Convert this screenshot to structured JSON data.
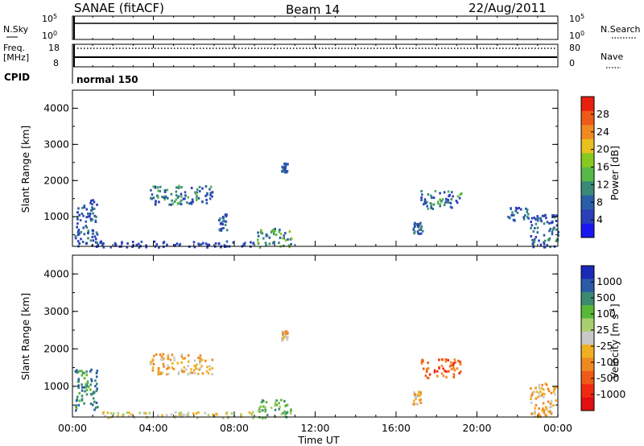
{
  "header": {
    "station": "SANAE (fitACF)",
    "beam": "Beam 14",
    "date": "22/Aug/2011"
  },
  "labels": {
    "nsky": "N.Sky",
    "nsky_top": "10^5",
    "nsky_bottom": "10^0",
    "nsearch": "N.Search",
    "nsearch_top": "10^5",
    "nsearch_bottom": "10^0",
    "freq_line1": "Freq.",
    "freq_line2": "[MHz]",
    "freq_top": "18",
    "freq_bottom": "8",
    "nave_top": "80",
    "nave_bottom": "0",
    "nave": "Nave",
    "cpid": "CPID",
    "cpid_value": "normal 150"
  },
  "colors": {
    "frame": "#000000",
    "power_scale": [
      "#1a17f0",
      "#2a3fb8",
      "#2a5ea8",
      "#3a8a78",
      "#58b848",
      "#88c820",
      "#e8c020",
      "#f08a20",
      "#f05a18",
      "#e82010"
    ],
    "velocity_scale": [
      "#1a2ab8",
      "#2a5aa8",
      "#3a8a70",
      "#58b838",
      "#a8d070",
      "#c8c8c8",
      "#f0b020",
      "#f08820",
      "#f05a18",
      "#f02a10",
      "#e01010"
    ]
  },
  "chart_data": [
    {
      "type": "heatmap",
      "name": "power",
      "xlabel": "",
      "ylabel": "Slant Range [km]",
      "x_ticks": [
        "00:00",
        "04:00",
        "08:00",
        "12:00",
        "16:00",
        "20:00",
        "00:00"
      ],
      "y_ticks": [
        "1000",
        "2000",
        "3000",
        "4000"
      ],
      "xlim_hours": [
        0,
        24
      ],
      "ylim_km": [
        180,
        4500
      ],
      "colorbar": {
        "label": "Power [dB]",
        "ticks": [
          "4",
          "8",
          "12",
          "16",
          "20",
          "24",
          "28"
        ],
        "range": [
          0,
          30
        ]
      },
      "regions": [
        {
          "t0": 3.8,
          "t1": 6.9,
          "r0": 1350,
          "r1": 1900,
          "level": 9
        },
        {
          "t0": 17.2,
          "t1": 19.2,
          "r0": 1250,
          "r1": 1750,
          "level": 10
        },
        {
          "t0": 0.1,
          "t1": 1.2,
          "r0": 200,
          "r1": 1500,
          "level": 6
        },
        {
          "t0": 9.1,
          "t1": 10.8,
          "r0": 180,
          "r1": 700,
          "level": 14
        },
        {
          "t0": 22.6,
          "t1": 24.0,
          "r0": 180,
          "r1": 1100,
          "level": 6
        },
        {
          "t0": 1.2,
          "t1": 9.0,
          "r0": 180,
          "r1": 350,
          "level": 5
        },
        {
          "t0": 10.3,
          "t1": 10.6,
          "r0": 2250,
          "r1": 2500,
          "level": 6
        },
        {
          "t0": 7.2,
          "t1": 7.6,
          "r0": 650,
          "r1": 1100,
          "level": 6
        },
        {
          "t0": 16.8,
          "t1": 17.3,
          "r0": 550,
          "r1": 900,
          "level": 6
        },
        {
          "t0": 21.5,
          "t1": 22.5,
          "r0": 900,
          "r1": 1300,
          "level": 6
        }
      ]
    },
    {
      "type": "heatmap",
      "name": "velocity",
      "xlabel": "Time UT",
      "ylabel": "Slant Range [km]",
      "x_ticks": [
        "00:00",
        "04:00",
        "08:00",
        "12:00",
        "16:00",
        "20:00",
        "00:00"
      ],
      "y_ticks": [
        "1000",
        "2000",
        "3000",
        "4000"
      ],
      "xlim_hours": [
        0,
        24
      ],
      "ylim_km": [
        180,
        4500
      ],
      "colorbar": {
        "label": "Velocity [m s^-1]",
        "ticks": [
          "1000",
          "500",
          "100",
          "25",
          "-25",
          "-100",
          "-500",
          "-1000"
        ]
      },
      "regions": [
        {
          "t0": 3.8,
          "t1": 6.9,
          "r0": 1350,
          "r1": 1900,
          "class": "-100"
        },
        {
          "t0": 17.2,
          "t1": 19.2,
          "r0": 1250,
          "r1": 1750,
          "class": "-500"
        },
        {
          "t0": 0.1,
          "t1": 1.2,
          "r0": 300,
          "r1": 1500,
          "class": "100"
        },
        {
          "t0": 9.1,
          "t1": 10.8,
          "r0": 180,
          "r1": 700,
          "class": "25"
        },
        {
          "t0": 22.6,
          "t1": 24.0,
          "r0": 180,
          "r1": 1100,
          "class": "-100"
        },
        {
          "t0": 1.2,
          "t1": 9.0,
          "r0": 180,
          "r1": 350,
          "class": "-25"
        },
        {
          "t0": 10.3,
          "t1": 10.6,
          "r0": 2250,
          "r1": 2500,
          "class": "-100"
        },
        {
          "t0": 16.8,
          "t1": 17.3,
          "r0": 550,
          "r1": 900,
          "class": "-100"
        }
      ]
    }
  ]
}
